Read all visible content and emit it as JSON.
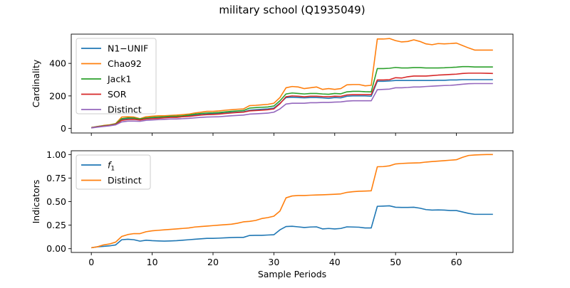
{
  "figure": {
    "title": "military school (Q1935049)"
  },
  "chart_data": [
    {
      "type": "line",
      "ylabel": "Cardinality",
      "xlabel": "",
      "xlim": [
        -3.3,
        69.3
      ],
      "ylim": [
        -28,
        580
      ],
      "xticks": [
        0,
        10,
        20,
        30,
        40,
        50,
        60
      ],
      "yticks": [
        0,
        200,
        400
      ],
      "ytick_labels": [
        "0",
        "200",
        "400"
      ],
      "show_xtick_labels": false,
      "legend_position": "upper-left",
      "x": [
        0,
        1,
        2,
        3,
        4,
        5,
        6,
        7,
        8,
        9,
        10,
        11,
        12,
        13,
        14,
        15,
        16,
        17,
        18,
        19,
        20,
        21,
        22,
        23,
        24,
        25,
        26,
        27,
        28,
        29,
        30,
        31,
        32,
        33,
        34,
        35,
        36,
        37,
        38,
        39,
        40,
        41,
        42,
        43,
        44,
        45,
        46,
        47,
        48,
        49,
        50,
        51,
        52,
        53,
        54,
        55,
        56,
        57,
        58,
        59,
        60,
        61,
        62,
        63,
        64,
        65,
        66
      ],
      "series": [
        {
          "name": "N1−UNIF",
          "color": "#1f77b4",
          "values": [
            5,
            10,
            15,
            18,
            25,
            55,
            62,
            60,
            55,
            62,
            65,
            68,
            70,
            72,
            72,
            75,
            78,
            82,
            85,
            88,
            90,
            92,
            95,
            98,
            100,
            102,
            112,
            115,
            118,
            120,
            125,
            155,
            190,
            192,
            190,
            188,
            190,
            190,
            188,
            185,
            190,
            188,
            198,
            200,
            200,
            200,
            198,
            290,
            290,
            292,
            295,
            295,
            295,
            295,
            295,
            295,
            295,
            296,
            296,
            298,
            298,
            300,
            300,
            300,
            300,
            300,
            300
          ]
        },
        {
          "name": "Chao92",
          "color": "#ff7f0e",
          "values": [
            5,
            12,
            18,
            22,
            30,
            70,
            72,
            70,
            60,
            72,
            75,
            78,
            78,
            80,
            82,
            85,
            88,
            95,
            100,
            105,
            105,
            108,
            112,
            115,
            118,
            120,
            140,
            142,
            145,
            148,
            155,
            190,
            250,
            258,
            255,
            245,
            250,
            255,
            240,
            245,
            240,
            245,
            268,
            270,
            270,
            262,
            265,
            550,
            550,
            553,
            540,
            532,
            535,
            545,
            535,
            520,
            515,
            522,
            520,
            522,
            525,
            510,
            495,
            482,
            482,
            482,
            482
          ]
        },
        {
          "name": "Jack1",
          "color": "#2ca02c",
          "values": [
            5,
            12,
            16,
            20,
            28,
            60,
            65,
            64,
            58,
            65,
            68,
            70,
            72,
            75,
            75,
            78,
            82,
            88,
            92,
            95,
            96,
            98,
            102,
            105,
            108,
            110,
            125,
            128,
            130,
            132,
            138,
            170,
            212,
            218,
            215,
            212,
            215,
            215,
            212,
            210,
            215,
            213,
            225,
            228,
            228,
            226,
            225,
            368,
            368,
            370,
            375,
            372,
            372,
            374,
            374,
            372,
            372,
            372,
            373,
            375,
            377,
            380,
            380,
            378,
            378,
            378,
            378
          ]
        },
        {
          "name": "SOR",
          "color": "#d62728",
          "values": [
            4,
            10,
            14,
            18,
            25,
            50,
            55,
            56,
            52,
            58,
            60,
            62,
            65,
            68,
            68,
            72,
            74,
            78,
            82,
            85,
            86,
            88,
            92,
            95,
            98,
            100,
            108,
            110,
            112,
            115,
            120,
            152,
            195,
            200,
            198,
            195,
            198,
            198,
            196,
            195,
            198,
            197,
            206,
            208,
            208,
            208,
            208,
            298,
            298,
            300,
            312,
            310,
            318,
            322,
            322,
            322,
            325,
            328,
            330,
            332,
            334,
            338,
            340,
            340,
            340,
            339,
            338
          ]
        },
        {
          "name": "Distinct",
          "color": "#9467bd",
          "values": [
            3,
            8,
            12,
            16,
            22,
            40,
            45,
            45,
            44,
            50,
            52,
            54,
            56,
            58,
            58,
            60,
            62,
            65,
            68,
            70,
            71,
            72,
            75,
            78,
            80,
            82,
            88,
            90,
            92,
            94,
            100,
            120,
            150,
            155,
            155,
            155,
            158,
            158,
            160,
            160,
            162,
            163,
            168,
            170,
            170,
            170,
            170,
            238,
            240,
            242,
            250,
            250,
            252,
            255,
            255,
            258,
            260,
            262,
            264,
            265,
            268,
            272,
            275,
            276,
            276,
            276,
            276
          ]
        }
      ]
    },
    {
      "type": "line",
      "ylabel": "Indicators",
      "xlabel": "Sample Periods",
      "xlim": [
        -3.3,
        69.3
      ],
      "ylim": [
        -0.04,
        1.04
      ],
      "xticks": [
        0,
        10,
        20,
        30,
        40,
        50,
        60
      ],
      "yticks": [
        0.0,
        0.25,
        0.5,
        0.75,
        1.0
      ],
      "ytick_labels": [
        "0.00",
        "0.25",
        "0.50",
        "0.75",
        "1.00"
      ],
      "show_xtick_labels": true,
      "legend_position": "upper-left",
      "x": [
        0,
        1,
        2,
        3,
        4,
        5,
        6,
        7,
        8,
        9,
        10,
        11,
        12,
        13,
        14,
        15,
        16,
        17,
        18,
        19,
        20,
        21,
        22,
        23,
        24,
        25,
        26,
        27,
        28,
        29,
        30,
        31,
        32,
        33,
        34,
        35,
        36,
        37,
        38,
        39,
        40,
        41,
        42,
        43,
        44,
        45,
        46,
        47,
        48,
        49,
        50,
        51,
        52,
        53,
        54,
        55,
        56,
        57,
        58,
        59,
        60,
        61,
        62,
        63,
        64,
        65,
        66
      ],
      "series": [
        {
          "name": "f1",
          "color": "#1f77b4",
          "values": [
            0.01,
            0.02,
            0.025,
            0.03,
            0.04,
            0.095,
            0.1,
            0.095,
            0.08,
            0.09,
            0.085,
            0.082,
            0.08,
            0.082,
            0.085,
            0.09,
            0.095,
            0.1,
            0.105,
            0.11,
            0.11,
            0.112,
            0.115,
            0.118,
            0.12,
            0.12,
            0.14,
            0.142,
            0.142,
            0.145,
            0.148,
            0.2,
            0.235,
            0.238,
            0.232,
            0.225,
            0.23,
            0.232,
            0.21,
            0.215,
            0.21,
            0.215,
            0.232,
            0.23,
            0.228,
            0.22,
            0.22,
            0.45,
            0.452,
            0.455,
            0.44,
            0.438,
            0.438,
            0.44,
            0.43,
            0.415,
            0.41,
            0.412,
            0.41,
            0.405,
            0.405,
            0.39,
            0.375,
            0.365,
            0.365,
            0.365,
            0.365
          ]
        },
        {
          "name": "Distinct",
          "color": "#ff7f0e",
          "values": [
            0.01,
            0.02,
            0.04,
            0.05,
            0.07,
            0.13,
            0.15,
            0.16,
            0.16,
            0.18,
            0.19,
            0.195,
            0.2,
            0.205,
            0.21,
            0.215,
            0.22,
            0.23,
            0.235,
            0.24,
            0.245,
            0.25,
            0.255,
            0.26,
            0.27,
            0.285,
            0.29,
            0.3,
            0.32,
            0.33,
            0.345,
            0.4,
            0.54,
            0.56,
            0.565,
            0.565,
            0.568,
            0.57,
            0.572,
            0.575,
            0.578,
            0.582,
            0.598,
            0.605,
            0.61,
            0.612,
            0.615,
            0.87,
            0.872,
            0.88,
            0.9,
            0.905,
            0.908,
            0.91,
            0.912,
            0.92,
            0.925,
            0.93,
            0.935,
            0.94,
            0.945,
            0.97,
            0.99,
            0.995,
            0.998,
            1.0,
            1.0
          ]
        }
      ]
    }
  ]
}
